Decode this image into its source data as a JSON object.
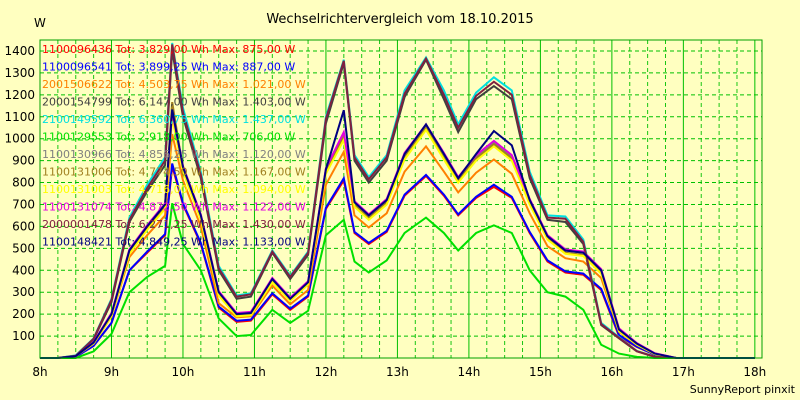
{
  "chart_data": {
    "type": "line",
    "title": "Wechselrichtervergleich vom 18.10.2015",
    "ylabel": "W",
    "xlabel": "",
    "footer": "SunnyReport pinxit",
    "ylim": [
      0,
      1450
    ],
    "yticks": [
      100,
      200,
      300,
      400,
      500,
      600,
      700,
      800,
      900,
      1000,
      1100,
      1200,
      1300,
      1400
    ],
    "xlim": [
      8,
      18.1
    ],
    "xticks": [
      8,
      9,
      10,
      11,
      12,
      13,
      14,
      15,
      16,
      17,
      18
    ],
    "xtick_labels": [
      "8h",
      "9h",
      "10h",
      "11h",
      "12h",
      "13h",
      "14h",
      "15h",
      "16h",
      "17h",
      "18h"
    ],
    "grid": true,
    "legend_position": "top-left",
    "x": [
      8.0,
      8.25,
      8.5,
      8.75,
      9.0,
      9.25,
      9.5,
      9.75,
      9.85,
      10.0,
      10.25,
      10.5,
      10.75,
      10.95,
      11.25,
      11.5,
      11.75,
      12.0,
      12.25,
      12.4,
      12.6,
      12.85,
      13.1,
      13.4,
      13.65,
      13.85,
      14.1,
      14.35,
      14.6,
      14.85,
      15.1,
      15.35,
      15.6,
      15.85,
      16.1,
      16.35,
      16.6,
      16.9,
      17.5,
      18.0
    ],
    "series": [
      {
        "name": "1100096436 Tot: 3.829,00 Wh Max: 875,00 W",
        "color": "#ff0000",
        "values": [
          0,
          0,
          5,
          55,
          160,
          400,
          480,
          560,
          875,
          700,
          520,
          230,
          165,
          170,
          290,
          220,
          280,
          680,
          810,
          570,
          520,
          575,
          740,
          830,
          740,
          650,
          730,
          780,
          730,
          570,
          440,
          390,
          380,
          310,
          100,
          50,
          15,
          0,
          0,
          0
        ]
      },
      {
        "name": "1100096541 Tot: 3.899,25 Wh Max: 887,00 W",
        "color": "#0000ff",
        "values": [
          0,
          0,
          5,
          55,
          160,
          400,
          485,
          565,
          887,
          705,
          525,
          235,
          170,
          175,
          295,
          225,
          285,
          685,
          820,
          575,
          525,
          580,
          745,
          835,
          745,
          655,
          735,
          790,
          735,
          575,
          445,
          395,
          385,
          315,
          105,
          52,
          15,
          0,
          0,
          0
        ]
      },
      {
        "name": "2001506622 Tot: 4.503,75 Wh Max: 1.021,00 W",
        "color": "#ff8000",
        "values": [
          0,
          0,
          8,
          65,
          190,
          460,
          560,
          650,
          1021,
          810,
          600,
          250,
          185,
          190,
          330,
          245,
          310,
          790,
          940,
          650,
          595,
          660,
          850,
          965,
          850,
          755,
          845,
          905,
          840,
          660,
          510,
          455,
          440,
          365,
          120,
          60,
          18,
          0,
          0,
          0
        ]
      },
      {
        "name": "2000154799 Tot: 6.147,00 Wh Max: 1.403,00 W",
        "color": "#404040",
        "values": [
          0,
          0,
          10,
          85,
          255,
          620,
          760,
          880,
          1403,
          1100,
          820,
          400,
          270,
          280,
          480,
          360,
          470,
          1070,
          1345,
          900,
          800,
          900,
          1190,
          1360,
          1180,
          1030,
          1180,
          1240,
          1180,
          820,
          630,
          620,
          520,
          150,
          90,
          30,
          5,
          0,
          0,
          0
        ]
      },
      {
        "name": "2100149592 Tot: 6.360,75 Wh Max: 1.437,00 W",
        "color": "#00e0e0",
        "values": [
          0,
          0,
          12,
          90,
          270,
          640,
          790,
          915,
          1437,
          1140,
          850,
          420,
          285,
          295,
          490,
          375,
          485,
          1100,
          1360,
          925,
          825,
          925,
          1220,
          1370,
          1220,
          1065,
          1210,
          1280,
          1220,
          850,
          650,
          645,
          540,
          160,
          95,
          32,
          6,
          0,
          0,
          0
        ]
      },
      {
        "name": "1100129553 Tot: 2.918,00 Wh Max: 706,00 W",
        "color": "#00e000",
        "values": [
          0,
          0,
          0,
          30,
          110,
          300,
          370,
          420,
          706,
          520,
          400,
          180,
          100,
          105,
          220,
          160,
          215,
          560,
          630,
          440,
          390,
          445,
          570,
          640,
          570,
          490,
          570,
          605,
          570,
          400,
          300,
          280,
          220,
          60,
          20,
          5,
          0,
          0,
          0,
          0
        ]
      },
      {
        "name": "1100130966 Tot: 4.856,25 Wh Max: 1.120,00 W",
        "color": "#808080",
        "values": [
          0,
          0,
          8,
          70,
          200,
          490,
          600,
          700,
          1120,
          870,
          650,
          300,
          200,
          205,
          360,
          270,
          345,
          860,
          1020,
          710,
          650,
          720,
          930,
          1060,
          930,
          820,
          920,
          985,
          920,
          720,
          555,
          490,
          480,
          400,
          130,
          65,
          20,
          0,
          0,
          0
        ]
      },
      {
        "name": "1100131006 Tot: 4.774,50 Wh Max: 1.167,00 W",
        "color": "#a08020",
        "values": [
          0,
          0,
          8,
          68,
          195,
          480,
          590,
          690,
          1167,
          860,
          640,
          290,
          195,
          200,
          350,
          265,
          340,
          850,
          1010,
          700,
          640,
          710,
          920,
          1050,
          920,
          810,
          910,
          975,
          910,
          710,
          545,
          480,
          470,
          390,
          125,
          62,
          18,
          0,
          0,
          0
        ]
      },
      {
        "name": "1100131003 Tot: 4.716,00 Wh Max: 1.094,00 W",
        "color": "#ffff00",
        "values": [
          0,
          0,
          8,
          66,
          192,
          475,
          585,
          680,
          1094,
          850,
          630,
          285,
          190,
          195,
          345,
          260,
          335,
          840,
          995,
          690,
          630,
          700,
          905,
          1040,
          905,
          800,
          900,
          965,
          900,
          700,
          540,
          475,
          465,
          385,
          122,
          60,
          18,
          0,
          0,
          0
        ]
      },
      {
        "name": "1100131074 Tot: 4.872,50 Wh Max: 1.122,00 W",
        "color": "#e000e0",
        "values": [
          0,
          0,
          8,
          72,
          205,
          495,
          605,
          705,
          1122,
          875,
          655,
          305,
          205,
          210,
          365,
          275,
          350,
          865,
          1030,
          715,
          655,
          725,
          935,
          1065,
          935,
          825,
          925,
          990,
          925,
          725,
          560,
          495,
          485,
          405,
          135,
          68,
          22,
          0,
          0,
          0
        ]
      },
      {
        "name": "2000001478 Tot: 6.271,25 Wh Max: 1.430,00 W",
        "color": "#802040",
        "values": [
          0,
          0,
          10,
          88,
          265,
          630,
          775,
          900,
          1430,
          1120,
          835,
          410,
          280,
          290,
          485,
          370,
          480,
          1090,
          1355,
          915,
          815,
          915,
          1205,
          1365,
          1200,
          1050,
          1195,
          1260,
          1200,
          835,
          640,
          635,
          530,
          155,
          92,
          31,
          6,
          0,
          0,
          0
        ]
      },
      {
        "name": "1100148421 Tot: 4.849,25 Wh Max: 1.133,00 W",
        "color": "#000080",
        "values": [
          0,
          0,
          8,
          70,
          200,
          490,
          600,
          700,
          1133,
          870,
          650,
          300,
          200,
          205,
          360,
          270,
          345,
          860,
          1130,
          710,
          650,
          720,
          930,
          1065,
          930,
          820,
          930,
          1035,
          970,
          720,
          555,
          490,
          480,
          400,
          130,
          65,
          20,
          0,
          0,
          0
        ]
      }
    ]
  }
}
